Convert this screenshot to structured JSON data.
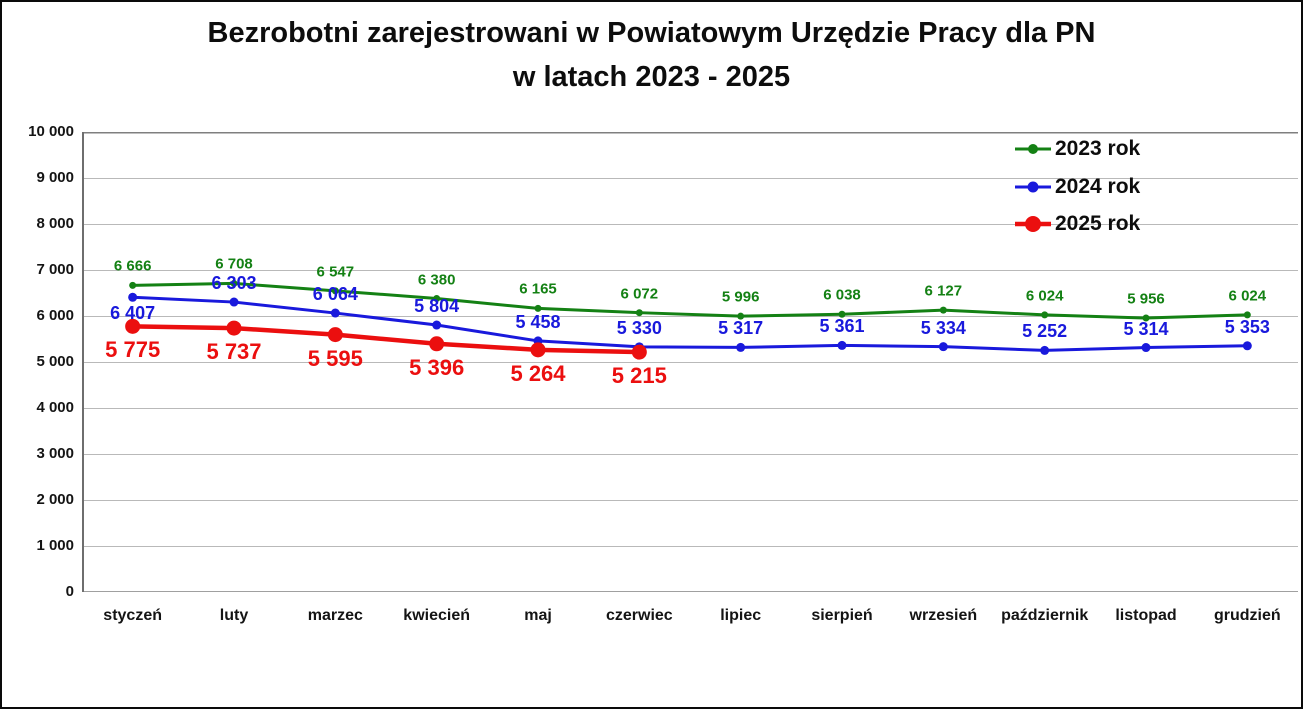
{
  "title": {
    "line1": "Bezrobotni zarejestrowani w Powiatowym Urzędzie Pracy dla PN",
    "line2": "w latach 2023 - 2025"
  },
  "chart_data": {
    "type": "line",
    "categories": [
      "styczeń",
      "luty",
      "marzec",
      "kwiecień",
      "maj",
      "czerwiec",
      "lipiec",
      "sierpień",
      "wrzesień",
      "październik",
      "listopad",
      "grudzień"
    ],
    "series": [
      {
        "name": "2023 rok",
        "color": "#148114",
        "labels_position": "above",
        "values": [
          6666,
          6708,
          6547,
          6380,
          6165,
          6072,
          5996,
          6038,
          6127,
          6024,
          5956,
          6024
        ]
      },
      {
        "name": "2024 rok",
        "color": "#1919dc",
        "labels_position": "above",
        "label_below_indices": [
          0
        ],
        "values": [
          6407,
          6303,
          6064,
          5804,
          5458,
          5330,
          5317,
          5361,
          5334,
          5252,
          5314,
          5353
        ]
      },
      {
        "name": "2025 rok",
        "color": "#eb0f0f",
        "labels_position": "below",
        "values": [
          5775,
          5737,
          5595,
          5396,
          5264,
          5215
        ]
      }
    ],
    "ylim": [
      0,
      10000
    ],
    "ytick_step": 1000,
    "ytick_labels": [
      "0",
      "1 000",
      "2 000",
      "3 000",
      "4 000",
      "5 000",
      "6 000",
      "7 000",
      "8 000",
      "9 000",
      "10 000"
    ],
    "grid": true,
    "legend_position": "top-right",
    "data_labels": true
  }
}
